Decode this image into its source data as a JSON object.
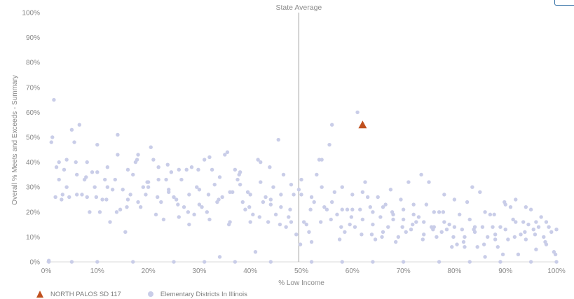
{
  "chart_data": {
    "type": "scatter",
    "xlabel": "% Low Income",
    "ylabel": "Overall % Meets and Exceeds - Summary",
    "xlim": [
      0,
      100
    ],
    "ylim": [
      0,
      100
    ],
    "x_ticks": [
      "0%",
      "10%",
      "20%",
      "30%",
      "40%",
      "50%",
      "60%",
      "70%",
      "80%",
      "90%",
      "100%"
    ],
    "y_ticks": [
      "0%",
      "10%",
      "20%",
      "30%",
      "40%",
      "50%",
      "60%",
      "70%",
      "80%",
      "90%",
      "100%"
    ],
    "grid": false,
    "reference_line": {
      "label": "State Average",
      "x": 49.5
    },
    "legend_position": "bottom-left",
    "series": [
      {
        "name": "NORTH PALOS SD 117",
        "marker": "triangle",
        "color": "#c0501e",
        "points": [
          [
            62,
            55
          ]
        ]
      },
      {
        "name": "Elementary Districts In Illinois",
        "marker": "circle",
        "color": "#c9cde8",
        "points": [
          [
            0.5,
            0.5
          ],
          [
            1,
            48
          ],
          [
            1.2,
            50
          ],
          [
            1.5,
            65
          ],
          [
            2,
            38
          ],
          [
            2.5,
            33
          ],
          [
            3,
            25
          ],
          [
            3.5,
            37
          ],
          [
            4,
            41
          ],
          [
            4.5,
            26
          ],
          [
            5,
            53
          ],
          [
            5.5,
            48
          ],
          [
            6,
            35
          ],
          [
            6.5,
            55
          ],
          [
            7,
            27
          ],
          [
            7.5,
            33
          ],
          [
            8,
            26
          ],
          [
            8.5,
            20
          ],
          [
            9,
            36
          ],
          [
            9.5,
            30
          ],
          [
            10,
            47
          ],
          [
            10.5,
            20
          ],
          [
            11,
            25
          ],
          [
            11.5,
            33
          ],
          [
            12,
            38
          ],
          [
            12.5,
            16
          ],
          [
            13,
            29
          ],
          [
            13.5,
            33
          ],
          [
            14,
            51
          ],
          [
            14.5,
            21
          ],
          [
            15,
            29
          ],
          [
            15.5,
            12
          ],
          [
            16,
            25
          ],
          [
            16.5,
            27
          ],
          [
            17,
            35
          ],
          [
            17.5,
            40
          ],
          [
            18,
            43
          ],
          [
            18.5,
            22
          ],
          [
            19,
            30
          ],
          [
            19.5,
            27
          ],
          [
            20,
            32
          ],
          [
            20.5,
            46
          ],
          [
            21,
            41
          ],
          [
            21.5,
            19
          ],
          [
            22,
            38
          ],
          [
            22.5,
            24
          ],
          [
            23,
            17
          ],
          [
            23.5,
            33
          ],
          [
            24,
            28
          ],
          [
            24.5,
            36
          ],
          [
            25,
            26
          ],
          [
            25.5,
            25
          ],
          [
            26,
            18
          ],
          [
            26.5,
            33
          ],
          [
            27,
            22
          ],
          [
            27.5,
            37
          ],
          [
            28,
            15
          ],
          [
            28.5,
            38
          ],
          [
            29,
            19
          ],
          [
            29.5,
            30
          ],
          [
            30,
            23
          ],
          [
            30.5,
            22
          ],
          [
            31,
            41
          ],
          [
            31.5,
            20
          ],
          [
            32,
            17
          ],
          [
            32.5,
            37
          ],
          [
            33,
            31
          ],
          [
            33.5,
            24
          ],
          [
            34,
            2
          ],
          [
            34.5,
            26
          ],
          [
            35,
            43
          ],
          [
            35.5,
            44
          ],
          [
            36,
            16
          ],
          [
            36.5,
            28
          ],
          [
            37,
            37
          ],
          [
            37.5,
            33
          ],
          [
            38,
            31
          ],
          [
            38.5,
            24
          ],
          [
            39,
            21
          ],
          [
            39.5,
            28
          ],
          [
            40,
            16
          ],
          [
            40.5,
            19
          ],
          [
            41,
            4
          ],
          [
            41.5,
            41
          ],
          [
            42,
            40
          ],
          [
            42.5,
            24
          ],
          [
            43,
            26
          ],
          [
            43.5,
            16
          ],
          [
            44,
            25
          ],
          [
            44.5,
            30
          ],
          [
            45,
            19
          ],
          [
            45.5,
            49
          ],
          [
            46,
            22
          ],
          [
            46.5,
            35
          ],
          [
            47,
            14
          ],
          [
            47.5,
            18
          ],
          [
            48,
            16
          ],
          [
            48.5,
            27
          ],
          [
            49,
            11
          ],
          [
            49.5,
            29
          ],
          [
            50,
            27
          ],
          [
            50.5,
            16
          ],
          [
            51,
            15
          ],
          [
            51.5,
            12
          ],
          [
            52,
            8
          ],
          [
            52.5,
            24
          ],
          [
            53,
            35
          ],
          [
            53.5,
            41
          ],
          [
            54,
            41
          ],
          [
            54.5,
            22
          ],
          [
            55,
            21
          ],
          [
            55.5,
            47
          ],
          [
            56,
            55
          ],
          [
            56.5,
            28
          ],
          [
            57,
            19
          ],
          [
            57.5,
            9
          ],
          [
            58,
            30
          ],
          [
            58.5,
            12
          ],
          [
            59,
            21
          ],
          [
            59.5,
            15
          ],
          [
            60,
            27
          ],
          [
            60.5,
            14
          ],
          [
            61,
            60
          ],
          [
            61.5,
            21
          ],
          [
            62,
            28
          ],
          [
            62.5,
            32
          ],
          [
            63,
            26
          ],
          [
            63.5,
            22
          ],
          [
            64,
            15
          ],
          [
            64.5,
            9
          ],
          [
            65,
            26
          ],
          [
            65.5,
            18
          ],
          [
            66,
            12
          ],
          [
            66.5,
            23
          ],
          [
            67,
            14
          ],
          [
            67.5,
            29
          ],
          [
            68,
            19
          ],
          [
            68.5,
            8
          ],
          [
            69,
            10
          ],
          [
            69.5,
            25
          ],
          [
            70,
            17
          ],
          [
            70.5,
            12
          ],
          [
            71,
            32
          ],
          [
            71.5,
            13
          ],
          [
            72,
            23
          ],
          [
            72.5,
            16
          ],
          [
            73,
            18
          ],
          [
            73.5,
            35
          ],
          [
            74,
            11
          ],
          [
            74.5,
            23
          ],
          [
            75,
            32
          ],
          [
            75.5,
            14
          ],
          [
            76,
            20
          ],
          [
            76.5,
            10
          ],
          [
            77,
            20
          ],
          [
            77.5,
            12
          ],
          [
            78,
            27
          ],
          [
            78.5,
            13
          ],
          [
            79,
            15
          ],
          [
            79.5,
            6
          ],
          [
            80,
            25
          ],
          [
            80.5,
            7
          ],
          [
            81,
            19
          ],
          [
            81.5,
            13
          ],
          [
            82,
            6
          ],
          [
            82.5,
            24
          ],
          [
            83,
            17
          ],
          [
            83.5,
            30
          ],
          [
            84,
            12
          ],
          [
            84.5,
            6
          ],
          [
            85,
            28
          ],
          [
            85.5,
            14
          ],
          [
            86,
            2
          ],
          [
            86.5,
            10
          ],
          [
            87,
            19
          ],
          [
            87.5,
            14
          ],
          [
            88,
            11
          ],
          [
            88.5,
            6
          ],
          [
            89,
            14
          ],
          [
            89.5,
            3
          ],
          [
            90,
            13
          ],
          [
            90.5,
            9
          ],
          [
            91,
            22
          ],
          [
            91.5,
            17
          ],
          [
            92,
            16
          ],
          [
            92.5,
            3
          ],
          [
            93,
            11
          ],
          [
            93.5,
            16
          ],
          [
            94,
            9
          ],
          [
            94.5,
            15
          ],
          [
            95,
            21
          ],
          [
            95.5,
            13
          ],
          [
            96,
            5
          ],
          [
            96.5,
            14
          ],
          [
            97,
            18
          ],
          [
            97.5,
            10
          ],
          [
            98,
            7
          ],
          [
            98.5,
            14
          ],
          [
            99,
            12
          ],
          [
            99.5,
            4
          ],
          [
            2.5,
            40
          ],
          [
            4,
            30
          ],
          [
            6,
            27
          ],
          [
            8,
            40
          ],
          [
            10,
            36
          ],
          [
            12,
            30
          ],
          [
            14,
            43
          ],
          [
            16,
            37
          ],
          [
            18,
            24
          ],
          [
            20,
            30
          ],
          [
            22,
            33
          ],
          [
            24,
            29
          ],
          [
            26,
            37
          ],
          [
            28,
            27
          ],
          [
            30,
            29
          ],
          [
            32,
            42
          ],
          [
            34,
            34
          ],
          [
            36,
            28
          ],
          [
            38,
            36
          ],
          [
            40,
            27
          ],
          [
            42,
            32
          ],
          [
            44,
            23
          ],
          [
            46,
            27
          ],
          [
            48,
            31
          ],
          [
            50,
            33
          ],
          [
            52,
            26
          ],
          [
            54,
            30
          ],
          [
            56,
            24
          ],
          [
            58,
            21
          ],
          [
            60,
            21
          ],
          [
            62,
            17
          ],
          [
            64,
            20
          ],
          [
            66,
            22
          ],
          [
            68,
            17
          ],
          [
            70,
            21
          ],
          [
            72,
            19
          ],
          [
            74,
            16
          ],
          [
            76,
            14
          ],
          [
            78,
            16
          ],
          [
            80,
            14
          ],
          [
            82,
            10
          ],
          [
            84,
            14
          ],
          [
            86,
            20
          ],
          [
            88,
            9
          ],
          [
            90,
            23
          ],
          [
            92,
            25
          ],
          [
            94,
            22
          ],
          [
            96,
            16
          ],
          [
            98,
            16
          ],
          [
            100,
            13
          ],
          [
            1.8,
            26
          ],
          [
            3.2,
            27
          ],
          [
            5.8,
            40
          ],
          [
            7.8,
            34
          ],
          [
            9.8,
            26
          ],
          [
            11.8,
            25
          ],
          [
            13.8,
            20
          ],
          [
            15.8,
            22
          ],
          [
            17.8,
            41
          ],
          [
            19.8,
            32
          ],
          [
            21.8,
            26
          ],
          [
            23.8,
            39
          ],
          [
            25.8,
            23
          ],
          [
            27.8,
            20
          ],
          [
            29.8,
            37
          ],
          [
            31.8,
            27
          ],
          [
            33.8,
            25
          ],
          [
            35.8,
            15
          ],
          [
            37.8,
            35
          ],
          [
            39.8,
            22
          ],
          [
            41.8,
            18
          ],
          [
            43.8,
            38
          ],
          [
            45.8,
            15
          ],
          [
            47.8,
            21
          ],
          [
            49.8,
            7
          ],
          [
            51.8,
            21
          ],
          [
            53.8,
            16
          ],
          [
            55.8,
            17
          ],
          [
            57.8,
            14
          ],
          [
            59.8,
            18
          ],
          [
            61.8,
            11
          ],
          [
            63.8,
            11
          ],
          [
            65.8,
            10
          ],
          [
            67.8,
            20
          ],
          [
            69.8,
            14
          ],
          [
            71.8,
            15
          ],
          [
            73.8,
            9
          ],
          [
            75.8,
            13
          ],
          [
            77.8,
            20
          ],
          [
            79.8,
            10
          ],
          [
            81.8,
            8
          ],
          [
            83.8,
            13
          ],
          [
            85.8,
            7
          ],
          [
            87.8,
            19
          ],
          [
            89.8,
            24
          ],
          [
            91.8,
            10
          ],
          [
            93.8,
            12
          ],
          [
            95.8,
            11
          ],
          [
            97.8,
            8
          ],
          [
            99.8,
            3
          ],
          [
            0.5,
            0
          ],
          [
            5,
            0
          ],
          [
            10,
            0
          ],
          [
            17,
            0
          ],
          [
            25,
            0
          ],
          [
            31,
            0
          ],
          [
            37,
            0
          ],
          [
            44,
            0
          ],
          [
            52,
            0
          ],
          [
            58,
            0
          ],
          [
            64,
            0
          ],
          [
            70,
            0
          ],
          [
            77,
            0
          ],
          [
            83,
            0
          ],
          [
            89,
            0
          ],
          [
            95,
            0
          ],
          [
            100,
            0
          ]
        ]
      }
    ]
  }
}
